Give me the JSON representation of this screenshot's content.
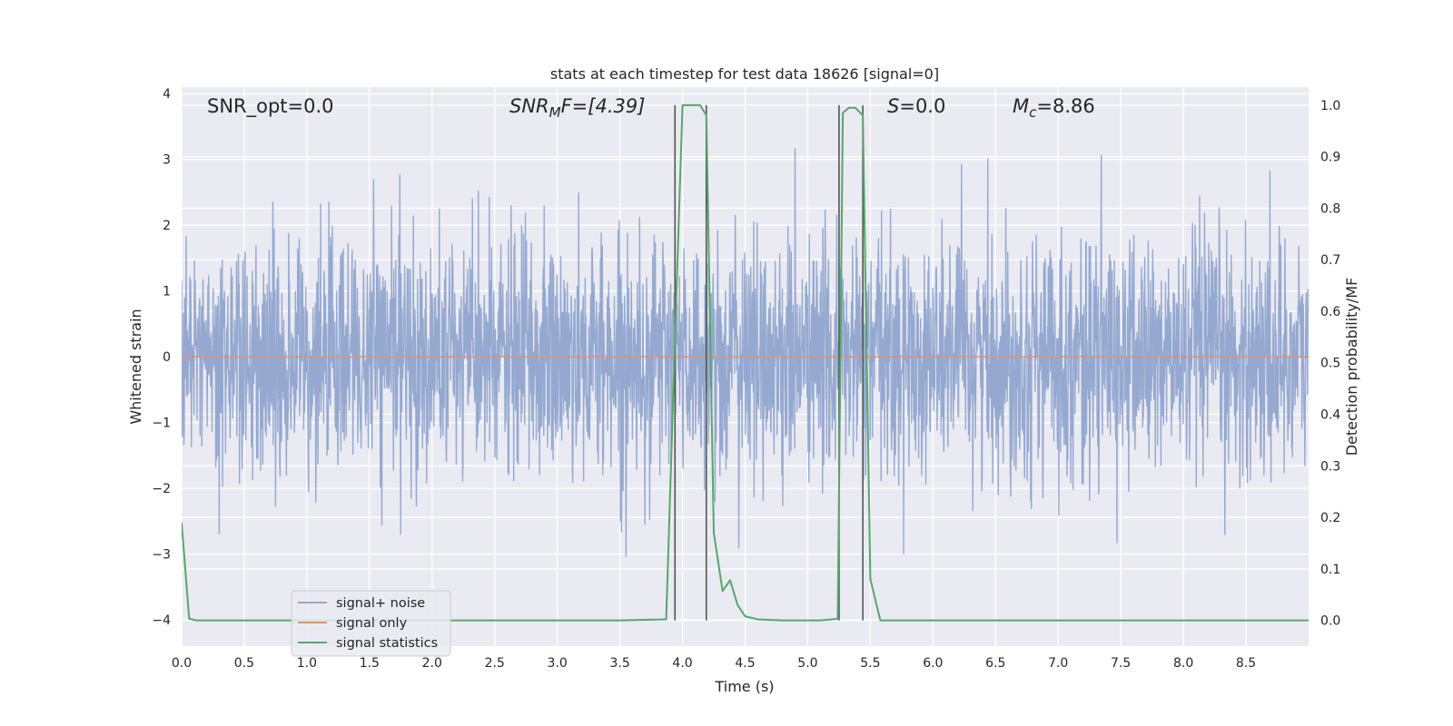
{
  "chart_data": {
    "type": "line",
    "title": "stats at each timestep for test data 18626 [signal=0]",
    "xlabel": "Time (s)",
    "ylabel": "Whitened strain",
    "ylabel_right": "Detection probability/MF",
    "xlim": [
      0,
      9
    ],
    "ylim": [
      -4.4,
      4.1
    ],
    "ylim_right": [
      -0.05,
      1.035
    ],
    "x_ticks": [
      "0.0",
      "0.5",
      "1.0",
      "1.5",
      "2.0",
      "2.5",
      "3.0",
      "3.5",
      "4.0",
      "4.5",
      "5.0",
      "5.5",
      "6.0",
      "6.5",
      "7.0",
      "7.5",
      "8.0",
      "8.5"
    ],
    "y_ticks": [
      "4",
      "3",
      "2",
      "1",
      "0",
      "−1",
      "−2",
      "−3",
      "−4"
    ],
    "y_ticks_right": [
      "1.0",
      "0.9",
      "0.8",
      "0.7",
      "0.6",
      "0.5",
      "0.4",
      "0.3",
      "0.2",
      "0.1",
      "0.0"
    ],
    "grid": true,
    "legend_position": "lower-left",
    "annotations": {
      "snr_opt": "SNR_opt=0.0",
      "snr_mf_main": "SNR",
      "snr_mf_sub": "M",
      "snr_mf_suffix": "F=[4.39]",
      "s_main": "S",
      "s_suffix": "=0.0",
      "mc_main": "M",
      "mc_sub": "c",
      "mc_suffix": "=8.86"
    },
    "vertical_lines_x": [
      3.94,
      4.19,
      5.25,
      5.44
    ],
    "series": [
      {
        "name": "signal+ noise",
        "color": "#95a9d0",
        "axis": "left",
        "kind": "noise",
        "duration": 9.0,
        "std": 0.9,
        "sample_step": 0.003
      },
      {
        "name": "signal only",
        "color": "#dd9270",
        "axis": "left",
        "x": [
          0,
          9
        ],
        "y": [
          0,
          0
        ]
      },
      {
        "name": "signal statistics",
        "color": "#55a868",
        "axis": "right",
        "x": [
          0,
          0.06,
          0.12,
          0.5,
          1.0,
          2.0,
          3.0,
          3.5,
          3.87,
          3.94,
          4.0,
          4.1,
          4.14,
          4.19,
          4.25,
          4.32,
          4.38,
          4.44,
          4.5,
          4.6,
          4.8,
          5.0,
          5.1,
          5.24,
          5.28,
          5.33,
          5.38,
          5.44,
          5.5,
          5.58,
          5.8,
          6.0,
          7.0,
          8.0,
          9.0
        ],
        "y": [
          0.19,
          0.003,
          0.0,
          0.0,
          0.0,
          0.0,
          0.0,
          0.0,
          0.002,
          0.55,
          1.0,
          1.0,
          1.0,
          0.98,
          0.17,
          0.057,
          0.078,
          0.03,
          0.008,
          0.002,
          0.0,
          0.0,
          0.0,
          0.003,
          0.985,
          0.995,
          0.995,
          0.98,
          0.08,
          0.0,
          0.0,
          0.0,
          0.0,
          0.0,
          0.0
        ]
      }
    ]
  }
}
